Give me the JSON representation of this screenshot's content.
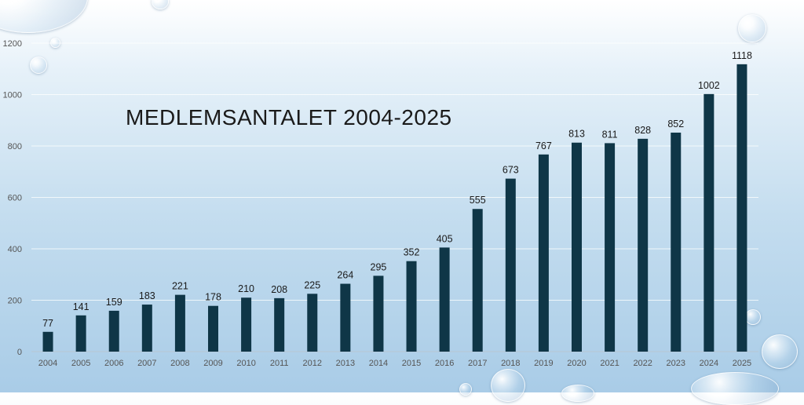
{
  "chart_data": {
    "type": "bar",
    "title": "MEDLEMSANTALET 2004-2025",
    "xlabel": "",
    "ylabel": "",
    "ylim": [
      0,
      1200
    ],
    "yticks": [
      0,
      200,
      400,
      600,
      800,
      1000,
      1200
    ],
    "grid": true,
    "legend": "none",
    "bar_color": "#0f3647",
    "categories": [
      "2004",
      "2005",
      "2006",
      "2007",
      "2008",
      "2009",
      "2010",
      "2011",
      "2012",
      "2013",
      "2014",
      "2015",
      "2016",
      "2017",
      "2018",
      "2019",
      "2020",
      "2021",
      "2022",
      "2023",
      "2024",
      "2025"
    ],
    "values": [
      77,
      141,
      159,
      183,
      221,
      178,
      210,
      208,
      225,
      264,
      295,
      352,
      405,
      555,
      673,
      767,
      813,
      811,
      828,
      852,
      1002,
      1118
    ]
  }
}
